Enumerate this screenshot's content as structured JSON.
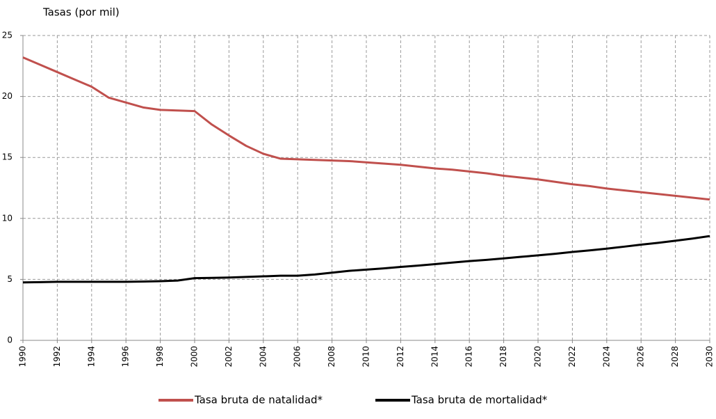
{
  "chart_data": {
    "type": "line",
    "y_label": "Tasas (por mil)",
    "x": [
      1990,
      1991,
      1992,
      1993,
      1994,
      1995,
      1996,
      1997,
      1998,
      1999,
      2000,
      2001,
      2002,
      2003,
      2004,
      2005,
      2006,
      2007,
      2008,
      2009,
      2010,
      2011,
      2012,
      2013,
      2014,
      2015,
      2016,
      2017,
      2018,
      2019,
      2020,
      2021,
      2022,
      2023,
      2024,
      2025,
      2026,
      2027,
      2028,
      2029,
      2030
    ],
    "series": [
      {
        "name": "Tasa bruta de natalidad*",
        "color": "#c0504d",
        "values": [
          23.2,
          22.6,
          22.0,
          21.4,
          20.8,
          19.9,
          19.5,
          19.1,
          18.9,
          18.85,
          18.8,
          17.7,
          16.8,
          15.95,
          15.3,
          14.9,
          14.85,
          14.8,
          14.75,
          14.7,
          14.6,
          14.5,
          14.4,
          14.25,
          14.1,
          14.0,
          13.85,
          13.7,
          13.5,
          13.35,
          13.2,
          13.0,
          12.8,
          12.65,
          12.45,
          12.3,
          12.15,
          12.0,
          11.85,
          11.7,
          11.55
        ]
      },
      {
        "name": "Tasa bruta de mortalidad*",
        "color": "#000000",
        "values": [
          4.75,
          4.77,
          4.8,
          4.8,
          4.8,
          4.8,
          4.8,
          4.82,
          4.85,
          4.9,
          5.1,
          5.12,
          5.15,
          5.2,
          5.25,
          5.3,
          5.3,
          5.4,
          5.55,
          5.7,
          5.8,
          5.9,
          6.02,
          6.13,
          6.25,
          6.38,
          6.5,
          6.6,
          6.72,
          6.85,
          6.97,
          7.1,
          7.25,
          7.38,
          7.52,
          7.68,
          7.85,
          8.0,
          8.17,
          8.35,
          8.55
        ]
      }
    ],
    "xlim": [
      1990,
      2030
    ],
    "xticks": [
      1990,
      1992,
      1994,
      1996,
      1998,
      2000,
      2002,
      2004,
      2006,
      2008,
      2010,
      2012,
      2014,
      2016,
      2018,
      2020,
      2022,
      2024,
      2026,
      2028,
      2030
    ],
    "ylim": [
      0,
      25
    ],
    "yticks": [
      0,
      5,
      10,
      15,
      20,
      25
    ],
    "grid": true,
    "legend": "bottom"
  }
}
